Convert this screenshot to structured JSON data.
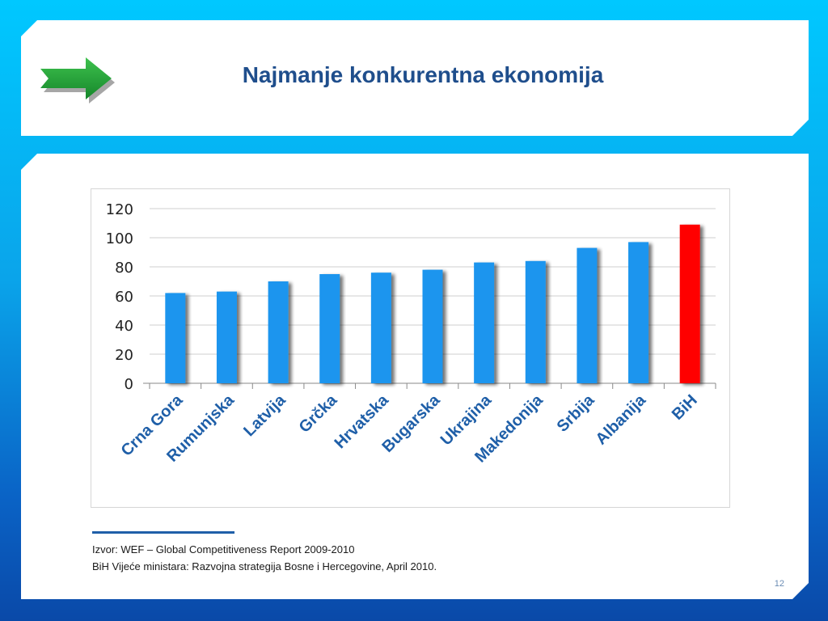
{
  "slide": {
    "title": "Najmanje konkurentna ekonomija",
    "source_line_1": "Izvor: WEF – Global Competitiveness Report 2009-2010",
    "source_line_2": "BiH Vijeće ministara: Razvojna strategija Bosne i Hercegovine, April 2010.",
    "page_number": "12",
    "arrow_icon": "arrow-right-icon",
    "arrow_color": "#1e9a32"
  },
  "chart_data": {
    "type": "bar",
    "title": "",
    "xlabel": "",
    "ylabel": "",
    "categories": [
      "Crna Gora",
      "Rumunjska",
      "Latvija",
      "Grčka",
      "Hrvatska",
      "Bugarska",
      "Ukrajina",
      "Makedonija",
      "Srbija",
      "Albanija",
      "BiH"
    ],
    "values": [
      62,
      63,
      70,
      75,
      76,
      78,
      83,
      84,
      93,
      97,
      109
    ],
    "ylim": [
      0,
      120
    ],
    "yticks": [
      0,
      20,
      40,
      60,
      80,
      100,
      120
    ],
    "grid": true,
    "legend": "none",
    "bar_color": "#1a95ee",
    "highlight_color": "#ff0000",
    "highlight_category": "BiH"
  }
}
